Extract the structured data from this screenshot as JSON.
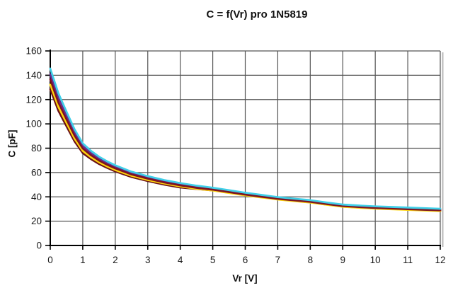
{
  "chart_data": {
    "type": "line",
    "title": "C = f(Vr) pro 1N5819",
    "xlabel": "Vr [V]",
    "ylabel": "C [pF]",
    "xlim": [
      0,
      12
    ],
    "ylim": [
      0,
      160
    ],
    "x_ticks": [
      0,
      1,
      2,
      3,
      4,
      5,
      6,
      7,
      8,
      9,
      10,
      11,
      12
    ],
    "y_ticks": [
      0,
      20,
      40,
      60,
      80,
      100,
      120,
      140,
      160
    ],
    "grid": true,
    "legend": false,
    "x": [
      0,
      0.25,
      0.5,
      0.75,
      1,
      1.25,
      1.5,
      1.75,
      2,
      2.5,
      3,
      3.5,
      4,
      4.5,
      5,
      5.5,
      6,
      6.5,
      7,
      7.5,
      8,
      8.5,
      9,
      9.5,
      10,
      10.5,
      11,
      11.5,
      12
    ],
    "series": [
      {
        "name": "purple",
        "color": "#682D90",
        "values": [
          140.8,
          121.2,
          106.7,
          92.8,
          81.8,
          76,
          71.4,
          67.7,
          64.6,
          59.5,
          55.9,
          52.9,
          50.3,
          48.2,
          46.7,
          44.7,
          42.6,
          40.8,
          39.1,
          37.8,
          36.6,
          34.7,
          33,
          32.2,
          31.5,
          31,
          30.5,
          30,
          29.5
        ]
      },
      {
        "name": "maroon",
        "color": "#6B1116",
        "values": [
          128.5,
          110.8,
          98,
          85.5,
          76,
          71.1,
          67,
          63.8,
          61,
          56.3,
          53,
          50.1,
          47.7,
          46.5,
          45.3,
          43.4,
          41.4,
          39.7,
          38,
          36.7,
          35.5,
          33.7,
          32,
          31.2,
          30.5,
          30,
          29.5,
          29,
          28.5
        ]
      },
      {
        "name": "yellow",
        "color": "#FFD60C",
        "values": [
          132.3,
          114,
          100.7,
          87.8,
          77.8,
          72.6,
          68.4,
          65,
          62.1,
          57.3,
          53.9,
          51,
          48.5,
          46.6,
          45.2,
          43.2,
          41.2,
          39.5,
          37.8,
          36.5,
          35.3,
          33.5,
          31.8,
          31,
          30.3,
          29.8,
          29.3,
          28.8,
          28.3
        ]
      },
      {
        "name": "dark red",
        "color": "#7D1423",
        "values": [
          136.6,
          117.6,
          103.7,
          90.3,
          79.8,
          74.3,
          69.9,
          66.4,
          63.4,
          58.4,
          54.9,
          51.9,
          49.4,
          47.4,
          45.9,
          43.9,
          41.9,
          40.1,
          38.4,
          37.1,
          35.9,
          34.1,
          32.4,
          31.6,
          30.9,
          30.4,
          29.9,
          29.4,
          28.9
        ]
      },
      {
        "name": "turquoise",
        "color": "#3FCFE8",
        "values": [
          145.5,
          125.2,
          110,
          95.5,
          84,
          77.9,
          73,
          69.2,
          66,
          60.7,
          57,
          53.9,
          51.3,
          49.2,
          47.5,
          45.5,
          43.4,
          41.6,
          39.8,
          38.5,
          37.3,
          35.4,
          33.7,
          32.9,
          32.2,
          31.7,
          31.2,
          30.7,
          30.2
        ]
      }
    ]
  },
  "colors": {
    "grid": "#545454",
    "axis": "#000000",
    "tick_text": "#1a1a1a",
    "shadow": "#b8b8b8",
    "background": "#ffffff"
  }
}
